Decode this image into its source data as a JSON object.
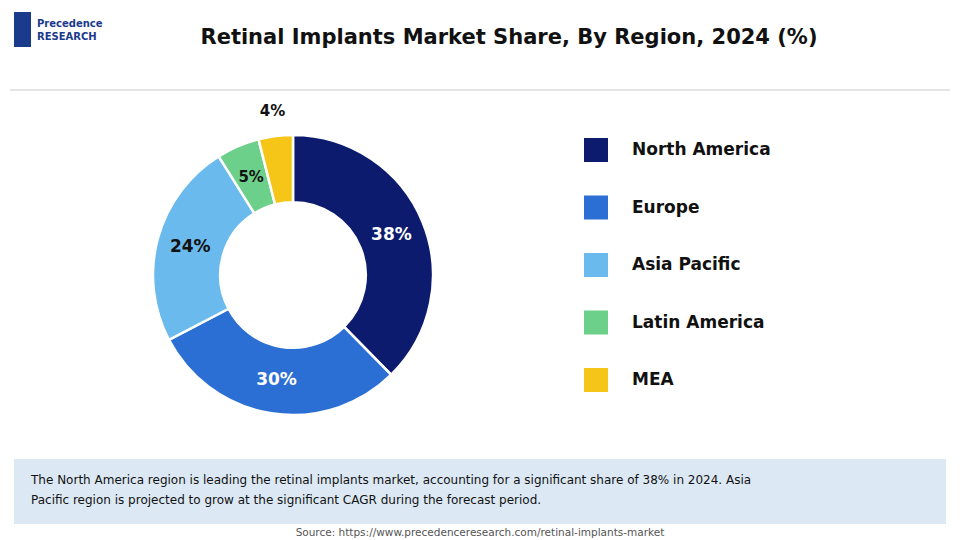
{
  "chart_data": {
    "type": "pie",
    "title": "Retinal Implants Market Share, By Region, 2024 (%)",
    "categories": [
      "North America",
      "Europe",
      "Asia Pacific",
      "Latin America",
      "MEA"
    ],
    "values": [
      38,
      30,
      24,
      5,
      4
    ],
    "value_labels": [
      "38%",
      "30%",
      "24%",
      "5%",
      "4%"
    ],
    "colors": [
      "#0d1b6e",
      "#2b6fd4",
      "#6abaee",
      "#6dd08a",
      "#f5c518"
    ],
    "data_labels": true,
    "legend": "right",
    "annotation": "The North America region is leading the retinal implants market, accounting for a significant share of 38% in 2024. Asia\nPacific region is projected to grow at the significant CAGR during the forecast period.",
    "source": "Source: https://www.precedenceresearch.com/retinal-implants-market",
    "logo": "Precedence\nRESEARCH"
  }
}
